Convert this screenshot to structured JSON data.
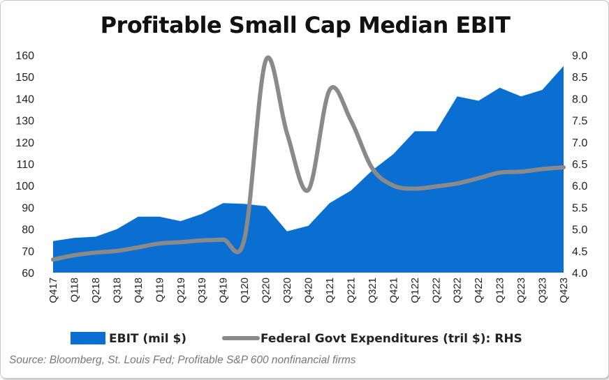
{
  "chart_data": {
    "type": "area",
    "title": "Profitable Small Cap Median EBIT",
    "categories": [
      "Q417",
      "Q118",
      "Q218",
      "Q318",
      "Q418",
      "Q119",
      "Q219",
      "Q319",
      "Q419",
      "Q120",
      "Q220",
      "Q320",
      "Q420",
      "Q121",
      "Q221",
      "Q321",
      "Q421",
      "Q122",
      "Q222",
      "Q322",
      "Q422",
      "Q123",
      "Q223",
      "Q323",
      "Q423"
    ],
    "ylim": [
      60,
      160
    ],
    "yticks": [
      60,
      70,
      80,
      90,
      100,
      110,
      120,
      130,
      140,
      150,
      160
    ],
    "y2lim": [
      4.0,
      9.0
    ],
    "y2ticks": [
      "4.0",
      "4.5",
      "5.0",
      "5.5",
      "6.0",
      "6.5",
      "7.0",
      "7.5",
      "8.0",
      "8.5",
      "9.0"
    ],
    "series": [
      {
        "name": "EBIT (mil $)",
        "type": "area",
        "axis": "left",
        "color": "#0a6fd0",
        "values": [
          74.5,
          76,
          76.5,
          80,
          85.7,
          85.7,
          83.7,
          87,
          92,
          91.6,
          90.5,
          79,
          81.5,
          92,
          97.7,
          107,
          114.5,
          125,
          125,
          141,
          139,
          145,
          141,
          144,
          155
        ]
      },
      {
        "name": "Federal Govt Expenditures (tril $): RHS",
        "type": "line",
        "axis": "right",
        "color": "#8a8a8a",
        "values": [
          4.3,
          4.4,
          4.46,
          4.5,
          4.58,
          4.67,
          4.7,
          4.74,
          4.76,
          4.78,
          8.88,
          7.2,
          5.9,
          8.2,
          7.5,
          6.4,
          6.0,
          5.93,
          5.98,
          6.05,
          6.17,
          6.3,
          6.32,
          6.38,
          6.42
        ]
      }
    ],
    "legend": {
      "position": "bottom",
      "entries": [
        "EBIT (mil $)",
        "Federal Govt Expenditures (tril $): RHS"
      ]
    },
    "source": "Source: Bloomberg, St. Louis Fed; Profitable S&P 600 nonfinancial firms"
  }
}
